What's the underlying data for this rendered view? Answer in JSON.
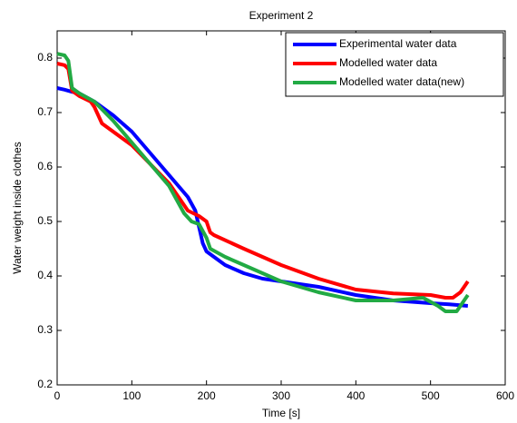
{
  "chart_data": {
    "type": "line",
    "title": "Experiment 2",
    "xlabel": "Time [s]",
    "ylabel": "Water weight inside clothes",
    "xlim": [
      0,
      600
    ],
    "xticks": [
      0,
      100,
      200,
      300,
      400,
      500,
      600
    ],
    "ylim": [
      0.2,
      0.85
    ],
    "yticks": [
      0.2,
      0.3,
      0.4,
      0.5,
      0.6,
      0.7,
      0.8
    ],
    "legend": "upper right",
    "series": [
      {
        "name": "Experimental water data",
        "color": "#0000ff",
        "x": [
          0,
          10,
          20,
          30,
          50,
          75,
          100,
          125,
          150,
          175,
          185,
          190,
          195,
          200,
          210,
          225,
          250,
          275,
          300,
          350,
          400,
          450,
          500,
          525,
          550
        ],
        "values": [
          0.745,
          0.742,
          0.738,
          0.735,
          0.72,
          0.695,
          0.665,
          0.625,
          0.585,
          0.545,
          0.52,
          0.49,
          0.46,
          0.445,
          0.435,
          0.42,
          0.405,
          0.395,
          0.39,
          0.38,
          0.365,
          0.355,
          0.35,
          0.348,
          0.345
        ]
      },
      {
        "name": "Modelled water data",
        "color": "#ff0000",
        "x": [
          0,
          10,
          15,
          20,
          30,
          45,
          50,
          60,
          75,
          100,
          125,
          150,
          175,
          190,
          200,
          205,
          210,
          250,
          300,
          350,
          400,
          450,
          500,
          520,
          530,
          540,
          550
        ],
        "values": [
          0.79,
          0.787,
          0.78,
          0.74,
          0.73,
          0.72,
          0.71,
          0.68,
          0.665,
          0.64,
          0.605,
          0.57,
          0.52,
          0.51,
          0.5,
          0.48,
          0.475,
          0.45,
          0.42,
          0.395,
          0.375,
          0.368,
          0.365,
          0.36,
          0.36,
          0.37,
          0.39
        ]
      },
      {
        "name": "Modelled water data(new)",
        "color": "#22aa44",
        "x": [
          0,
          10,
          15,
          20,
          30,
          50,
          75,
          100,
          125,
          150,
          170,
          180,
          190,
          200,
          205,
          225,
          250,
          300,
          350,
          400,
          450,
          490,
          510,
          520,
          535,
          545,
          550
        ],
        "values": [
          0.808,
          0.805,
          0.795,
          0.745,
          0.735,
          0.72,
          0.685,
          0.645,
          0.605,
          0.565,
          0.515,
          0.5,
          0.495,
          0.47,
          0.45,
          0.435,
          0.42,
          0.39,
          0.37,
          0.355,
          0.355,
          0.36,
          0.345,
          0.335,
          0.335,
          0.355,
          0.365
        ]
      }
    ]
  }
}
